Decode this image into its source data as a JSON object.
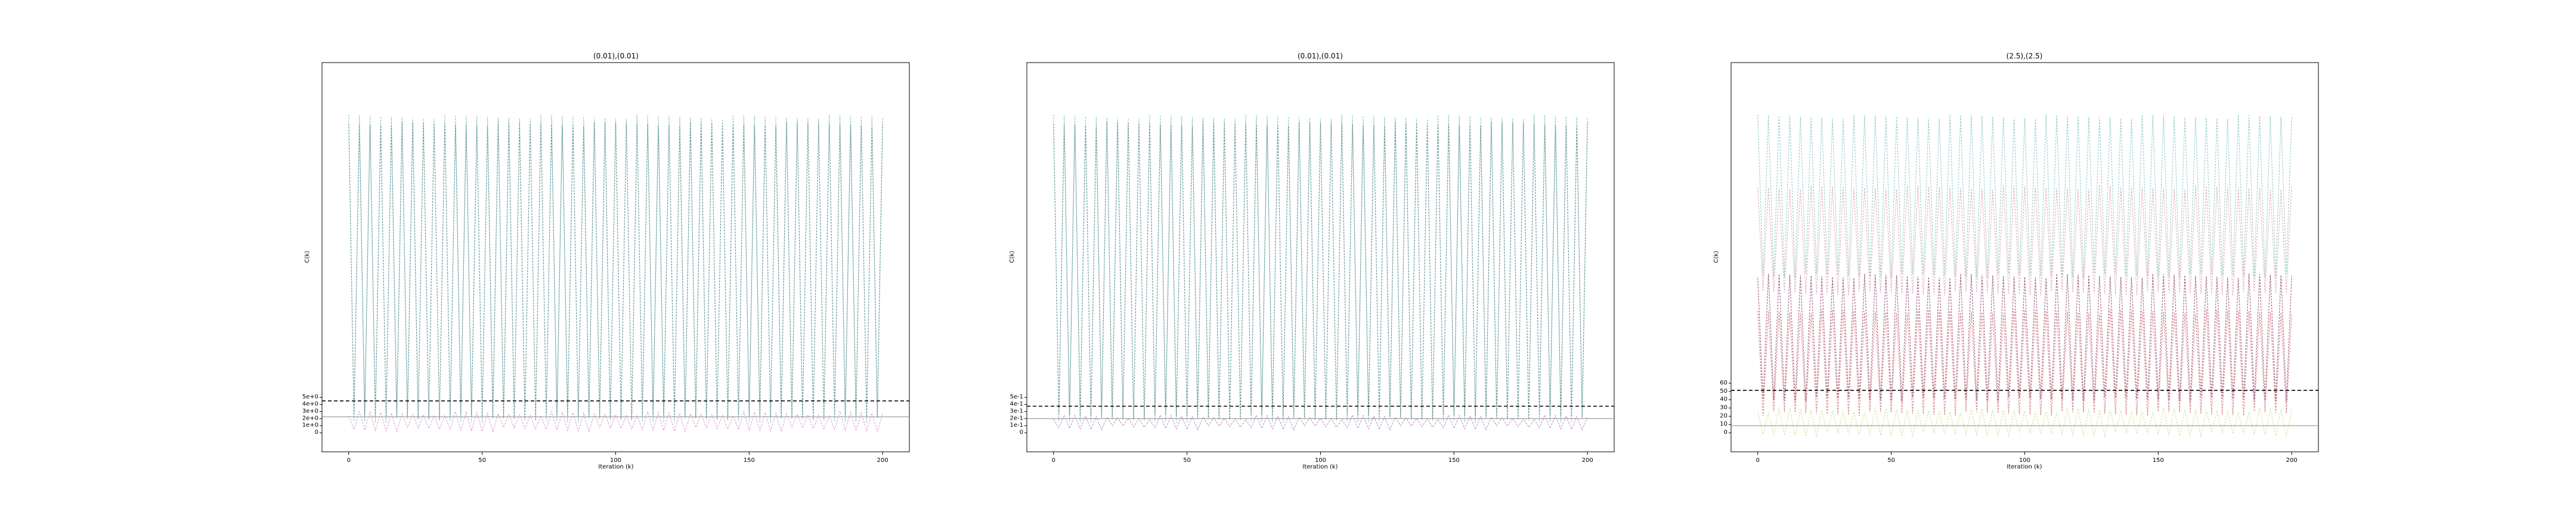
{
  "figure": {
    "chart_data": [
      {
        "type": "line",
        "title": "(0.01),(0.01)",
        "xlabel": "Iteration (k)",
        "ylabel": "C(k)",
        "xlim": [
          -10,
          210
        ],
        "xticks": [
          "0",
          "50",
          "100",
          "150",
          "200"
        ],
        "y_tick_labels": [
          "0",
          "1e+0",
          "2e+0",
          "3e+0",
          "4e+0",
          "5e+0"
        ],
        "grid": false,
        "series": [
          {
            "color": "#7fbfbf",
            "period": 4,
            "levels": [
              0.9,
              0.04
            ],
            "values": [
              0.9,
              0.04,
              0.9,
              0.04
            ]
          },
          {
            "color": "#5a8a8a",
            "period": 4,
            "levels": [
              0.88,
              0.05
            ],
            "values": [
              0.88,
              0.05,
              0.88,
              0.05
            ]
          },
          {
            "color": "#cc8fc4",
            "period": 4,
            "levels": [
              0.06,
              0.015
            ],
            "values": [
              0.06,
              0.015,
              0.06,
              0.015
            ]
          }
        ],
        "reference_lines": [
          {
            "style": "dashed",
            "color": "#000000",
            "y": 0.09
          },
          {
            "style": "solid",
            "color": "#888888",
            "y": 0.045
          }
        ]
      },
      {
        "type": "line",
        "title": "(0.01),(0.01)",
        "xlabel": "Iteration (k)",
        "ylabel": "C(k)",
        "xlim": [
          -10,
          210
        ],
        "xticks": [
          "0",
          "50",
          "100",
          "150",
          "200"
        ],
        "y_tick_labels": [
          "0",
          "1e-1",
          "2e-1",
          "3e-1",
          "4e-1",
          "5e-1"
        ],
        "grid": false,
        "series": [
          {
            "color": "#7fbfbf",
            "period": 4,
            "levels": [
              0.9,
              0.04
            ],
            "values": [
              0.9,
              0.04,
              0.9,
              0.04
            ]
          },
          {
            "color": "#5a8a8a",
            "period": 4,
            "levels": [
              0.88,
              0.05
            ],
            "values": [
              0.88,
              0.05,
              0.88,
              0.05
            ]
          },
          {
            "color": "#b07ab0",
            "period": 4,
            "levels": [
              0.05,
              0.02
            ],
            "values": [
              0.05,
              0.02,
              0.05,
              0.02
            ]
          }
        ],
        "reference_lines": [
          {
            "style": "dashed",
            "color": "#000000",
            "y": 0.075
          },
          {
            "style": "solid",
            "color": "#888888",
            "y": 0.04
          }
        ]
      },
      {
        "type": "line",
        "title": "(2.5),(2.5)",
        "xlabel": "Iteration (k)",
        "ylabel": "C(k)",
        "xlim": [
          -10,
          210
        ],
        "xticks": [
          "0",
          "50",
          "100",
          "150",
          "200"
        ],
        "y_tick_labels": [
          "0",
          "10",
          "20",
          "30",
          "40",
          "50",
          "60"
        ],
        "grid": false,
        "series": [
          {
            "color": "#7fbfbf",
            "period": 4,
            "levels": [
              0.9,
              0.45
            ],
            "values": [
              0.9,
              0.45,
              0.9,
              0.45
            ]
          },
          {
            "color": "#d9a0a0",
            "period": 4,
            "levels": [
              0.7,
              0.4
            ],
            "values": [
              0.7,
              0.4,
              0.7,
              0.4
            ]
          },
          {
            "color": "#8a3a6a",
            "period": 4,
            "levels": [
              0.45,
              0.1
            ],
            "values": [
              0.45,
              0.1,
              0.45,
              0.1
            ]
          },
          {
            "color": "#d46a6a",
            "period": 4,
            "levels": [
              0.35,
              0.06
            ],
            "values": [
              0.35,
              0.06,
              0.35,
              0.06
            ]
          },
          {
            "color": "#d8d880",
            "period": 4,
            "levels": [
              0.07,
              0.0
            ],
            "values": [
              0.07,
              0.0,
              0.07,
              0.0
            ]
          }
        ],
        "reference_lines": [
          {
            "style": "dashed",
            "color": "#000000",
            "y": 0.12
          },
          {
            "style": "solid",
            "color": "#888888",
            "y": 0.02
          }
        ]
      }
    ]
  }
}
